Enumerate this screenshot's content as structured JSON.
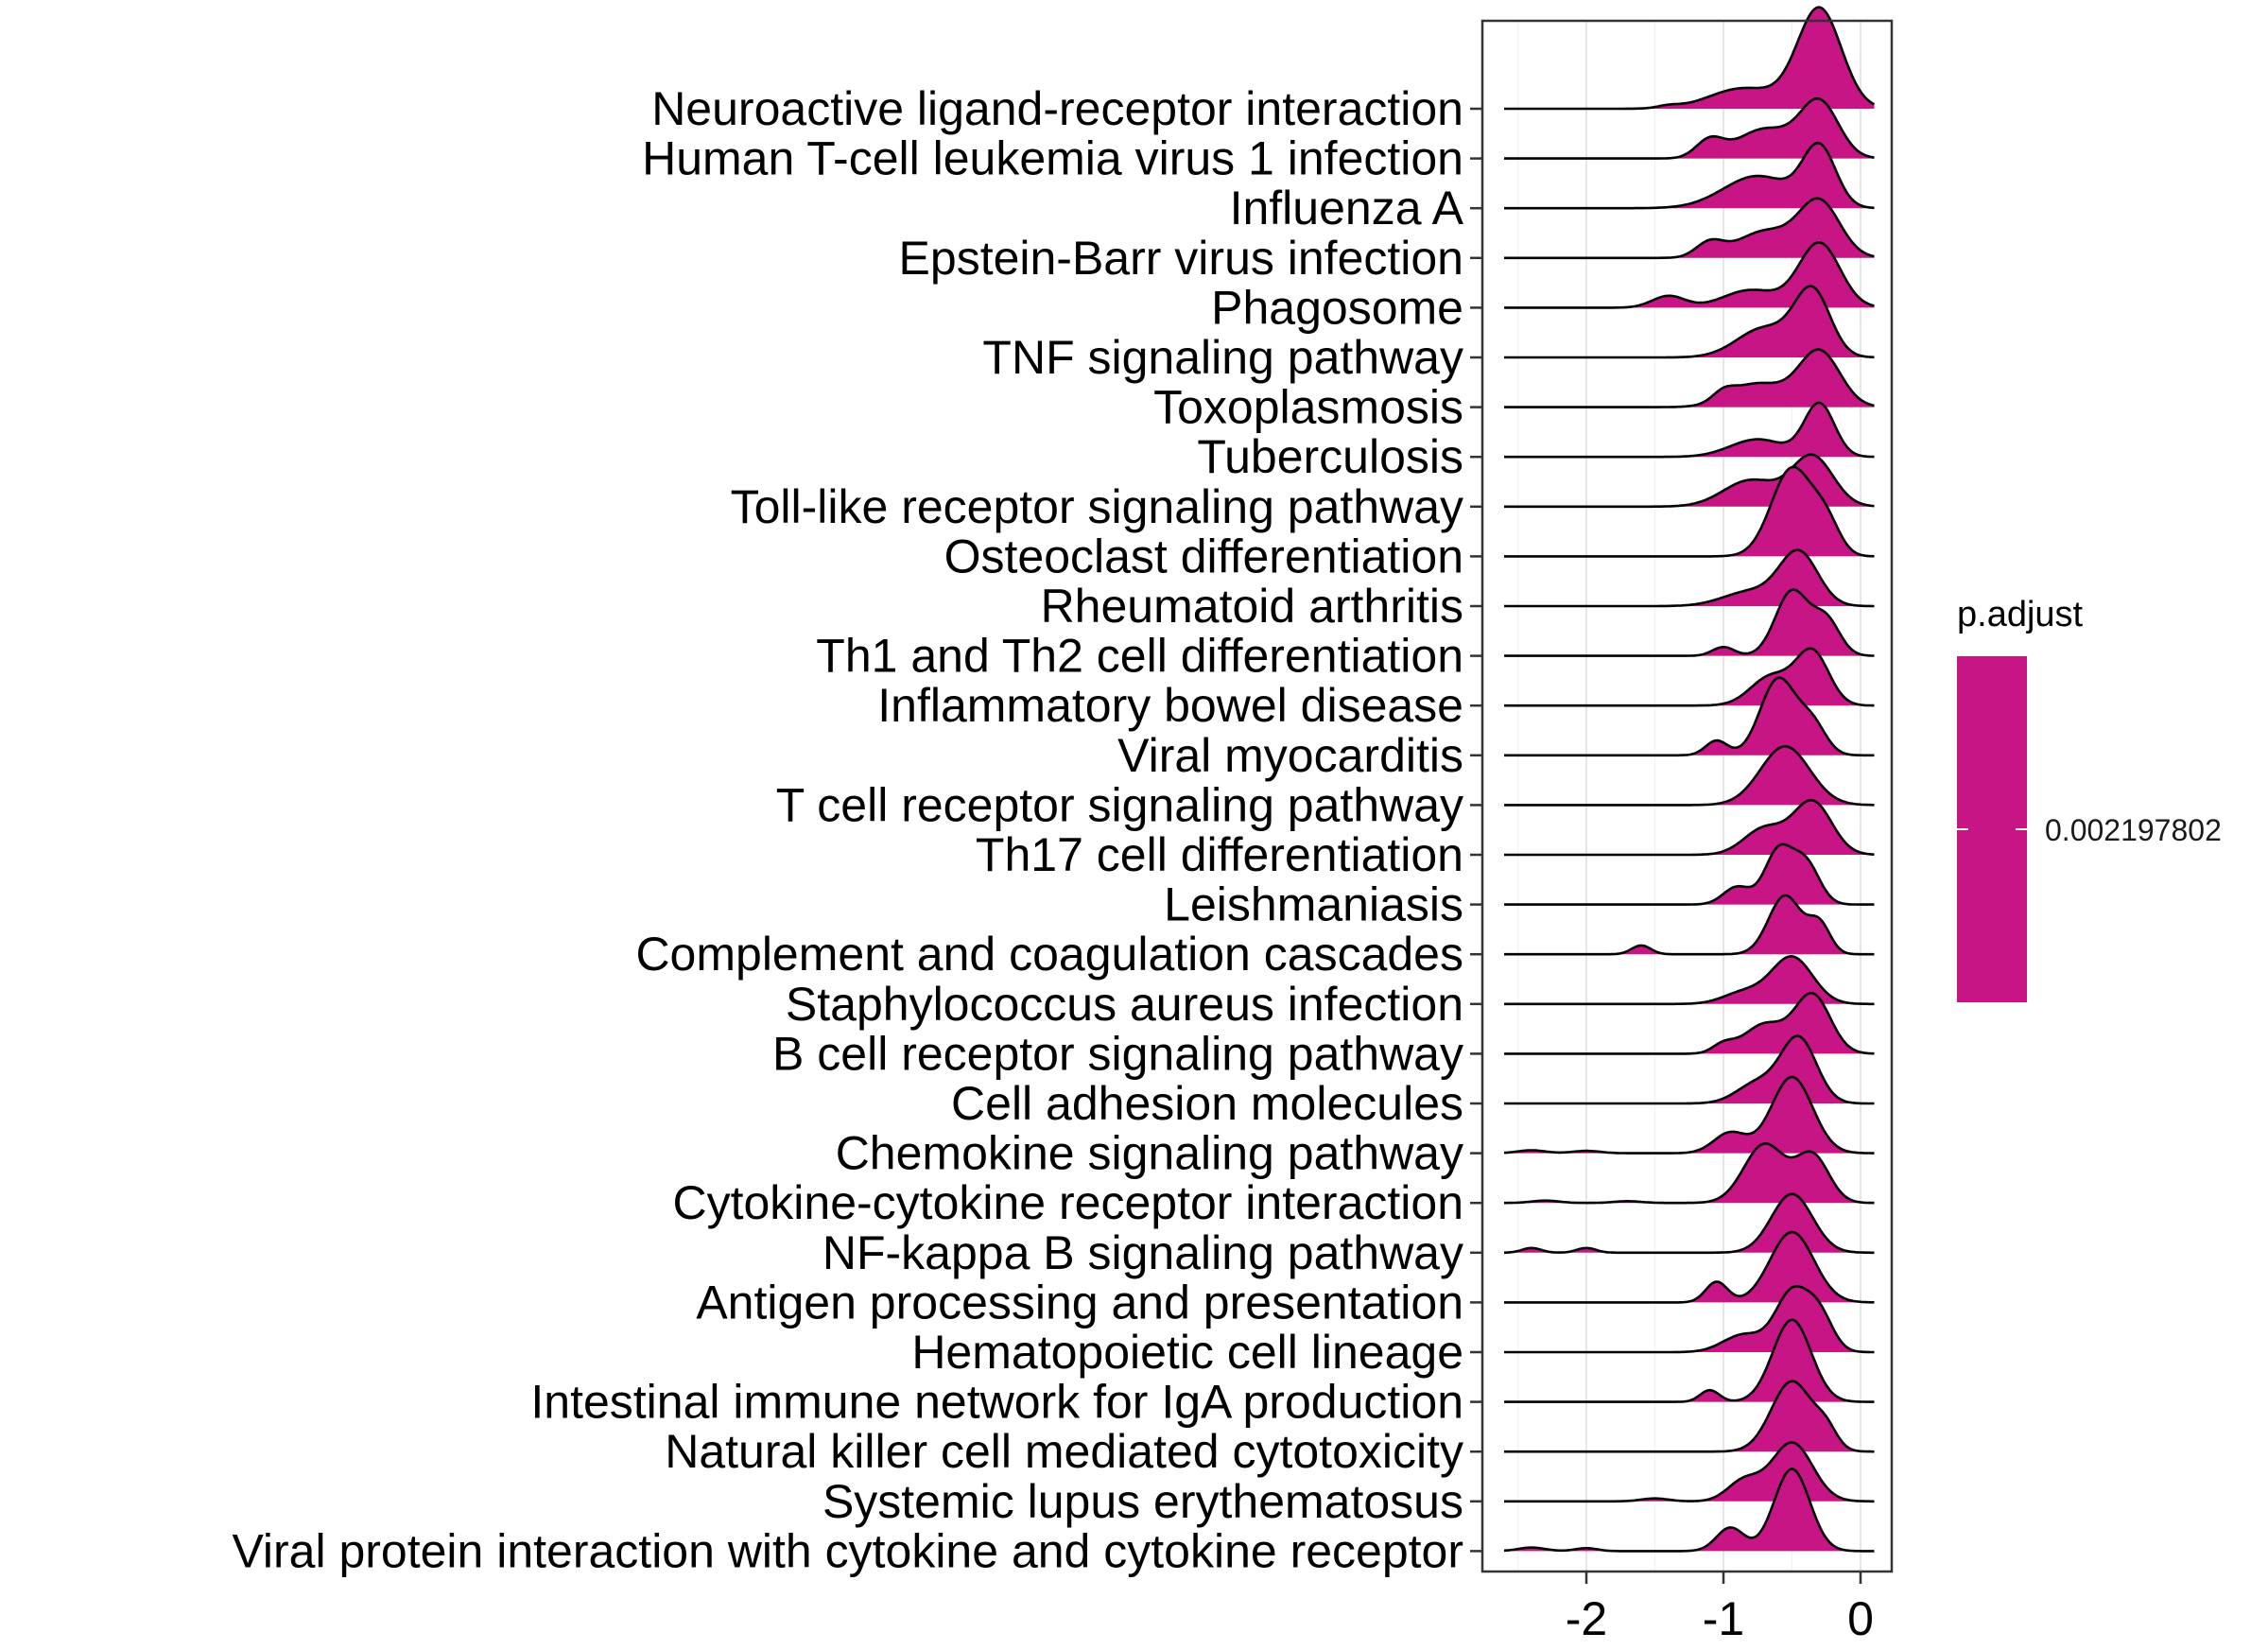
{
  "chart_data": {
    "type": "ridgeline",
    "title": "",
    "xlabel": "",
    "ylabel": "",
    "xlim": [
      -2.8,
      0.2
    ],
    "x_ticks": [
      {
        "value": -2,
        "label": "-2"
      },
      {
        "value": -1,
        "label": "-1"
      },
      {
        "value": 0,
        "label": "0"
      }
    ],
    "grid": true,
    "legend": {
      "title": "p.adjust",
      "position": "right",
      "labels": [
        "0.002197802"
      ],
      "color": "#C71585"
    },
    "fill_color": "#C71585",
    "line_color": "#000000",
    "categories": [
      "Neuroactive ligand-receptor interaction",
      "Human T-cell leukemia virus 1 infection",
      "Influenza A",
      "Epstein-Barr virus infection",
      "Phagosome",
      "TNF signaling pathway",
      "Toxoplasmosis",
      "Tuberculosis",
      "Toll-like receptor signaling pathway",
      "Osteoclast differentiation",
      "Rheumatoid arthritis",
      "Th1 and Th2 cell differentiation",
      "Inflammatory bowel disease",
      "Viral myocarditis",
      "T cell receptor signaling pathway",
      "Th17 cell differentiation",
      "Leishmaniasis",
      "Complement and coagulation cascades",
      "Staphylococcus aureus infection",
      "B cell receptor signaling pathway",
      "Cell adhesion molecules",
      "Chemokine signaling pathway",
      "Cytokine-cytokine receptor interaction",
      "NF-kappa B signaling pathway",
      "Antigen processing and presentation",
      "Hematopoietic cell lineage",
      "Intestinal immune network for IgA production",
      "Natural killer cell mediated cytotoxicity",
      "Systemic lupus erythematosus",
      "Viral protein interaction with cytokine and cytokine receptor"
    ],
    "series": [
      {
        "x_range": [
          -2.6,
          0.1
        ],
        "peaks": [
          [
            -0.3,
            1.7,
            0.16
          ],
          [
            -0.85,
            0.35,
            0.25
          ],
          [
            -1.4,
            0.04,
            0.08
          ]
        ]
      },
      {
        "x_range": [
          -2.6,
          0.1
        ],
        "peaks": [
          [
            -0.3,
            0.95,
            0.14
          ],
          [
            -0.7,
            0.5,
            0.2
          ],
          [
            -1.1,
            0.3,
            0.1
          ]
        ]
      },
      {
        "x_range": [
          -2.6,
          0.1
        ],
        "peaks": [
          [
            -0.3,
            1.0,
            0.12
          ],
          [
            -0.75,
            0.55,
            0.25
          ]
        ]
      },
      {
        "x_range": [
          -2.6,
          0.1
        ],
        "peaks": [
          [
            -0.3,
            0.95,
            0.15
          ],
          [
            -0.7,
            0.45,
            0.2
          ],
          [
            -1.1,
            0.25,
            0.1
          ]
        ]
      },
      {
        "x_range": [
          -2.6,
          0.1
        ],
        "peaks": [
          [
            -0.3,
            1.1,
            0.15
          ],
          [
            -0.8,
            0.3,
            0.2
          ],
          [
            -1.4,
            0.2,
            0.12
          ]
        ]
      },
      {
        "x_range": [
          -2.6,
          0.1
        ],
        "peaks": [
          [
            -0.35,
            1.1,
            0.13
          ],
          [
            -0.7,
            0.5,
            0.2
          ]
        ]
      },
      {
        "x_range": [
          -2.6,
          0.1
        ],
        "peaks": [
          [
            -0.3,
            0.95,
            0.15
          ],
          [
            -0.75,
            0.4,
            0.2
          ],
          [
            -1.0,
            0.15,
            0.08
          ]
        ]
      },
      {
        "x_range": [
          -2.6,
          0.1
        ],
        "peaks": [
          [
            -0.3,
            0.9,
            0.11
          ],
          [
            -0.75,
            0.3,
            0.2
          ]
        ]
      },
      {
        "x_range": [
          -2.6,
          0.1
        ],
        "peaks": [
          [
            -0.35,
            0.85,
            0.15
          ],
          [
            -0.8,
            0.45,
            0.2
          ]
        ]
      },
      {
        "x_range": [
          -2.6,
          0.1
        ],
        "peaks": [
          [
            -0.5,
            1.5,
            0.15
          ],
          [
            -0.25,
            0.5,
            0.1
          ]
        ]
      },
      {
        "x_range": [
          -2.6,
          0.1
        ],
        "peaks": [
          [
            -0.45,
            0.9,
            0.14
          ],
          [
            -0.8,
            0.25,
            0.2
          ]
        ]
      },
      {
        "x_range": [
          -2.6,
          0.1
        ],
        "peaks": [
          [
            -0.5,
            1.1,
            0.12
          ],
          [
            -0.25,
            0.6,
            0.1
          ],
          [
            -1.0,
            0.15,
            0.08
          ]
        ]
      },
      {
        "x_range": [
          -2.6,
          0.1
        ],
        "peaks": [
          [
            -0.35,
            0.9,
            0.12
          ],
          [
            -0.65,
            0.5,
            0.15
          ]
        ]
      },
      {
        "x_range": [
          -2.6,
          0.1
        ],
        "peaks": [
          [
            -0.6,
            1.3,
            0.13
          ],
          [
            -0.35,
            0.5,
            0.1
          ],
          [
            -1.05,
            0.25,
            0.08
          ]
        ]
      },
      {
        "x_range": [
          -2.6,
          0.1
        ],
        "peaks": [
          [
            -0.55,
            1.0,
            0.18
          ]
        ]
      },
      {
        "x_range": [
          -2.6,
          0.1
        ],
        "peaks": [
          [
            -0.35,
            0.9,
            0.14
          ],
          [
            -0.7,
            0.45,
            0.15
          ]
        ]
      },
      {
        "x_range": [
          -2.6,
          0.1
        ],
        "peaks": [
          [
            -0.6,
            0.9,
            0.1
          ],
          [
            -0.4,
            0.7,
            0.1
          ],
          [
            -0.9,
            0.3,
            0.1
          ]
        ]
      },
      {
        "x_range": [
          -2.6,
          0.1
        ],
        "peaks": [
          [
            -0.55,
            1.0,
            0.12
          ],
          [
            -0.3,
            0.5,
            0.08
          ],
          [
            -1.6,
            0.15,
            0.07
          ]
        ]
      },
      {
        "x_range": [
          -2.6,
          0.1
        ],
        "peaks": [
          [
            -0.5,
            0.8,
            0.15
          ],
          [
            -0.85,
            0.2,
            0.15
          ]
        ]
      },
      {
        "x_range": [
          -2.6,
          0.1
        ],
        "peaks": [
          [
            -0.35,
            1.0,
            0.13
          ],
          [
            -0.7,
            0.5,
            0.15
          ],
          [
            -1.0,
            0.15,
            0.08
          ]
        ]
      },
      {
        "x_range": [
          -2.6,
          0.1
        ],
        "peaks": [
          [
            -0.45,
            1.1,
            0.13
          ],
          [
            -0.75,
            0.35,
            0.15
          ]
        ]
      },
      {
        "x_range": [
          -2.6,
          0.1
        ],
        "peaks": [
          [
            -0.5,
            1.3,
            0.15
          ],
          [
            -0.95,
            0.35,
            0.12
          ],
          [
            -2.4,
            0.05,
            0.1
          ],
          [
            -2.0,
            0.04,
            0.1
          ]
        ]
      },
      {
        "x_range": [
          -2.6,
          0.1
        ],
        "peaks": [
          [
            -0.7,
            1.0,
            0.15
          ],
          [
            -0.35,
            0.8,
            0.12
          ],
          [
            -2.3,
            0.04,
            0.1
          ],
          [
            -1.7,
            0.03,
            0.1
          ]
        ]
      },
      {
        "x_range": [
          -2.6,
          0.1
        ],
        "peaks": [
          [
            -0.5,
            1.0,
            0.15
          ],
          [
            -2.4,
            0.08,
            0.07
          ],
          [
            -2.0,
            0.08,
            0.07
          ]
        ]
      },
      {
        "x_range": [
          -2.6,
          0.1
        ],
        "peaks": [
          [
            -0.5,
            1.2,
            0.16
          ],
          [
            -1.05,
            0.35,
            0.08
          ]
        ]
      },
      {
        "x_range": [
          -2.6,
          0.1
        ],
        "peaks": [
          [
            -0.5,
            1.0,
            0.12
          ],
          [
            -0.3,
            0.6,
            0.1
          ],
          [
            -0.85,
            0.3,
            0.15
          ]
        ]
      },
      {
        "x_range": [
          -2.6,
          0.1
        ],
        "peaks": [
          [
            -0.5,
            1.4,
            0.14
          ],
          [
            -1.1,
            0.2,
            0.07
          ]
        ]
      },
      {
        "x_range": [
          -2.6,
          0.1
        ],
        "peaks": [
          [
            -0.5,
            1.2,
            0.15
          ],
          [
            -0.25,
            0.3,
            0.08
          ]
        ]
      },
      {
        "x_range": [
          -2.6,
          0.1
        ],
        "peaks": [
          [
            -0.5,
            1.0,
            0.15
          ],
          [
            -0.85,
            0.35,
            0.12
          ],
          [
            -1.5,
            0.05,
            0.1
          ]
        ]
      },
      {
        "x_range": [
          -2.6,
          0.1
        ],
        "peaks": [
          [
            -0.5,
            1.4,
            0.13
          ],
          [
            -0.95,
            0.4,
            0.1
          ],
          [
            -2.4,
            0.06,
            0.1
          ],
          [
            -2.0,
            0.05,
            0.08
          ]
        ]
      }
    ]
  }
}
